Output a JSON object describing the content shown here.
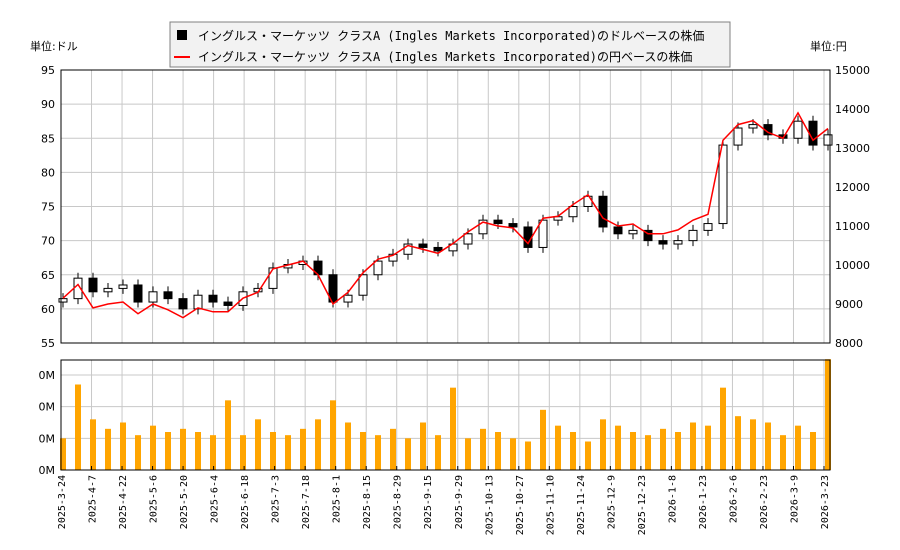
{
  "chart_data": [
    {
      "type": "candlestick+line",
      "legend": [
        {
          "label": "イングルス・マーケッツ クラスA (Ingles Markets Incorporated)のドルベースの株価",
          "color": "#000000",
          "marker": "square"
        },
        {
          "label": "イングルス・マーケッツ クラスA (Ingles Markets Incorporated)の円ベースの株価",
          "color": "#ff0000",
          "marker": "line"
        }
      ],
      "legend_placement": "top-center",
      "y_left_label": "単位:ドル",
      "y_right_label": "単位:円",
      "y_left_ticks": [
        "55",
        "60",
        "65",
        "70",
        "75",
        "80",
        "85",
        "90",
        "95"
      ],
      "y_left_range": [
        55,
        95
      ],
      "y_right_ticks": [
        "8000",
        "9000",
        "10000",
        "11000",
        "12000",
        "13000",
        "14000",
        "15000"
      ],
      "y_right_range": [
        8000,
        15000
      ],
      "grid": true,
      "x_ticks": [
        "2025-3-24",
        "2025-4-7",
        "2025-4-22",
        "2025-5-6",
        "2025-5-20",
        "2025-6-4",
        "2025-6-18",
        "2025-7-3",
        "2025-7-18",
        "2025-8-1",
        "2025-8-15",
        "2025-8-29",
        "2025-9-15",
        "2025-9-29",
        "2025-10-13",
        "2025-10-27",
        "2025-11-10",
        "2025-11-24",
        "2025-12-9",
        "2025-12-23",
        "2026-1-8",
        "2026-1-23",
        "2026-2-6",
        "2026-2-23",
        "2026-3-9",
        "2026-3-23"
      ],
      "series": [
        {
          "name": "ドルベース",
          "color": "#000000",
          "values": [
            61.5,
            64.5,
            62.5,
            63,
            63.5,
            61,
            62.5,
            61.5,
            60,
            62,
            61,
            60.5,
            62.5,
            63,
            66,
            66.5,
            67,
            65,
            61,
            62,
            65,
            67,
            68,
            69.5,
            69,
            68.5,
            69.5,
            71,
            73,
            72.5,
            72,
            69,
            73,
            73.5,
            75,
            76.5,
            72,
            71,
            71.5,
            70,
            69.5,
            70,
            71.5,
            72.5,
            84,
            86.5,
            87,
            85.5,
            85,
            87.5,
            84,
            85.5
          ]
        },
        {
          "name": "円ベース",
          "color": "#ff0000",
          "values": [
            9150,
            9500,
            8900,
            9000,
            9050,
            8750,
            9000,
            8850,
            8650,
            8900,
            8800,
            8800,
            9150,
            9300,
            9900,
            10000,
            10100,
            9750,
            9000,
            9300,
            9800,
            10150,
            10250,
            10500,
            10400,
            10300,
            10550,
            10850,
            11100,
            11000,
            10950,
            10550,
            11200,
            11250,
            11550,
            11800,
            11200,
            11000,
            11050,
            10800,
            10800,
            10900,
            11150,
            11300,
            13200,
            13600,
            13700,
            13400,
            13250,
            13900,
            13200,
            13500
          ]
        }
      ]
    },
    {
      "type": "bar",
      "y_ticks": [
        "0M",
        "0M",
        "0M",
        "0M"
      ],
      "color": "#ffa500",
      "values": [
        1.0,
        2.7,
        1.6,
        1.3,
        1.5,
        1.1,
        1.4,
        1.2,
        1.3,
        1.2,
        1.1,
        2.2,
        1.1,
        1.6,
        1.2,
        1.1,
        1.3,
        1.6,
        2.2,
        1.5,
        1.2,
        1.1,
        1.3,
        1.0,
        1.5,
        1.1,
        2.6,
        1.0,
        1.3,
        1.2,
        1.0,
        0.9,
        1.9,
        1.4,
        1.2,
        0.9,
        1.6,
        1.4,
        1.2,
        1.1,
        1.3,
        1.2,
        1.5,
        1.4,
        2.6,
        1.7,
        1.6,
        1.5,
        1.1,
        1.4,
        1.2,
        3.5
      ]
    }
  ]
}
